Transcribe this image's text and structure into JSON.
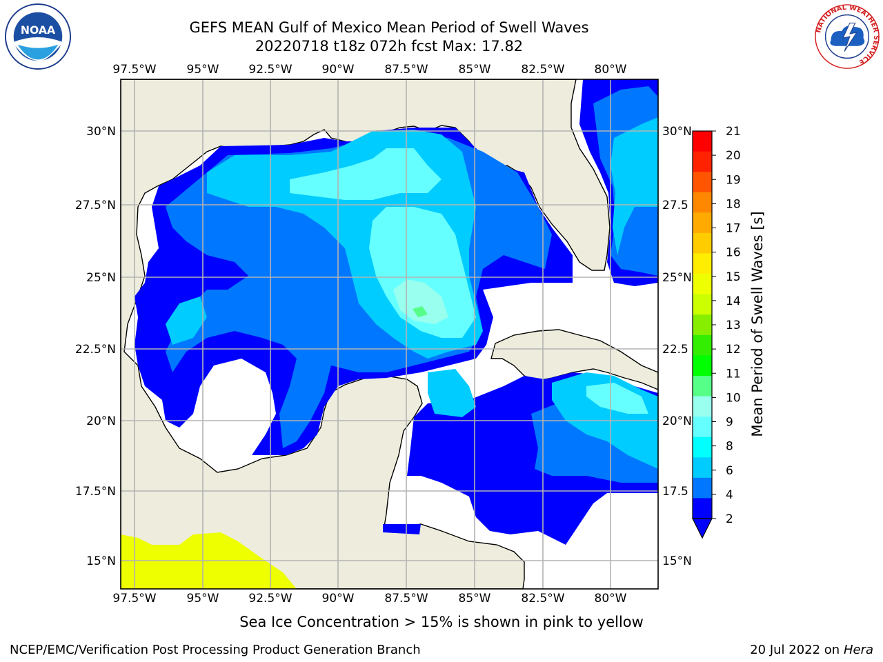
{
  "header": {
    "title_line1": "GEFS MEAN Gulf of Mexico Mean Period of Swell Waves",
    "title_line2": "20220718 t18z 072h fcst   Max: 17.82"
  },
  "logos": {
    "left": "noaa-logo",
    "right": "national-weather-service-logo",
    "left_text": "NOAA",
    "right_ring_text": "NATIONAL WEATHER SERVICE"
  },
  "map": {
    "region": "Gulf of Mexico",
    "longitude_labels": [
      "97.5°W",
      "95°W",
      "92.5°W",
      "90°W",
      "87.5°W",
      "85°W",
      "82.5°W",
      "80°W"
    ],
    "latitude_labels": [
      "30°N",
      "27.5°N",
      "25°N",
      "22.5°N",
      "20°N",
      "17.5°N",
      "15°N"
    ],
    "right_latitude_labels": [
      "30°N",
      "27.5",
      "25°N",
      "22.5",
      "20°N",
      "17.5",
      "15°N"
    ],
    "colors": {
      "land": "#eeecdc",
      "grid": "#b3b3b3",
      "coast": "#000000",
      "sea_ice": "#eeff00"
    }
  },
  "colorbar": {
    "label": "Mean Period of Swell Waves [s]",
    "ticks": [
      "2",
      "4",
      "6",
      "8",
      "9",
      "10",
      "11",
      "12",
      "13",
      "14",
      "15",
      "16",
      "17",
      "18",
      "19",
      "20",
      "21"
    ],
    "colors": [
      "#0000ff",
      "#0077ff",
      "#00ccff",
      "#00ffff",
      "#66ffff",
      "#99ffee",
      "#55ff88",
      "#00ff00",
      "#33ee00",
      "#88ee00",
      "#ccff00",
      "#eeff00",
      "#ffee00",
      "#ffcc00",
      "#ffaa00",
      "#ff8800",
      "#ff5500",
      "#ff2200",
      "#ff0000"
    ],
    "extend": "min"
  },
  "caption": "Sea Ice Concentration > 15% is shown in pink to yellow",
  "footer": {
    "left": "NCEP/EMC/Verification Post Processing Product Generation Branch",
    "right_prefix": "20 Jul 2022 on ",
    "right_italic": "Hera"
  }
}
